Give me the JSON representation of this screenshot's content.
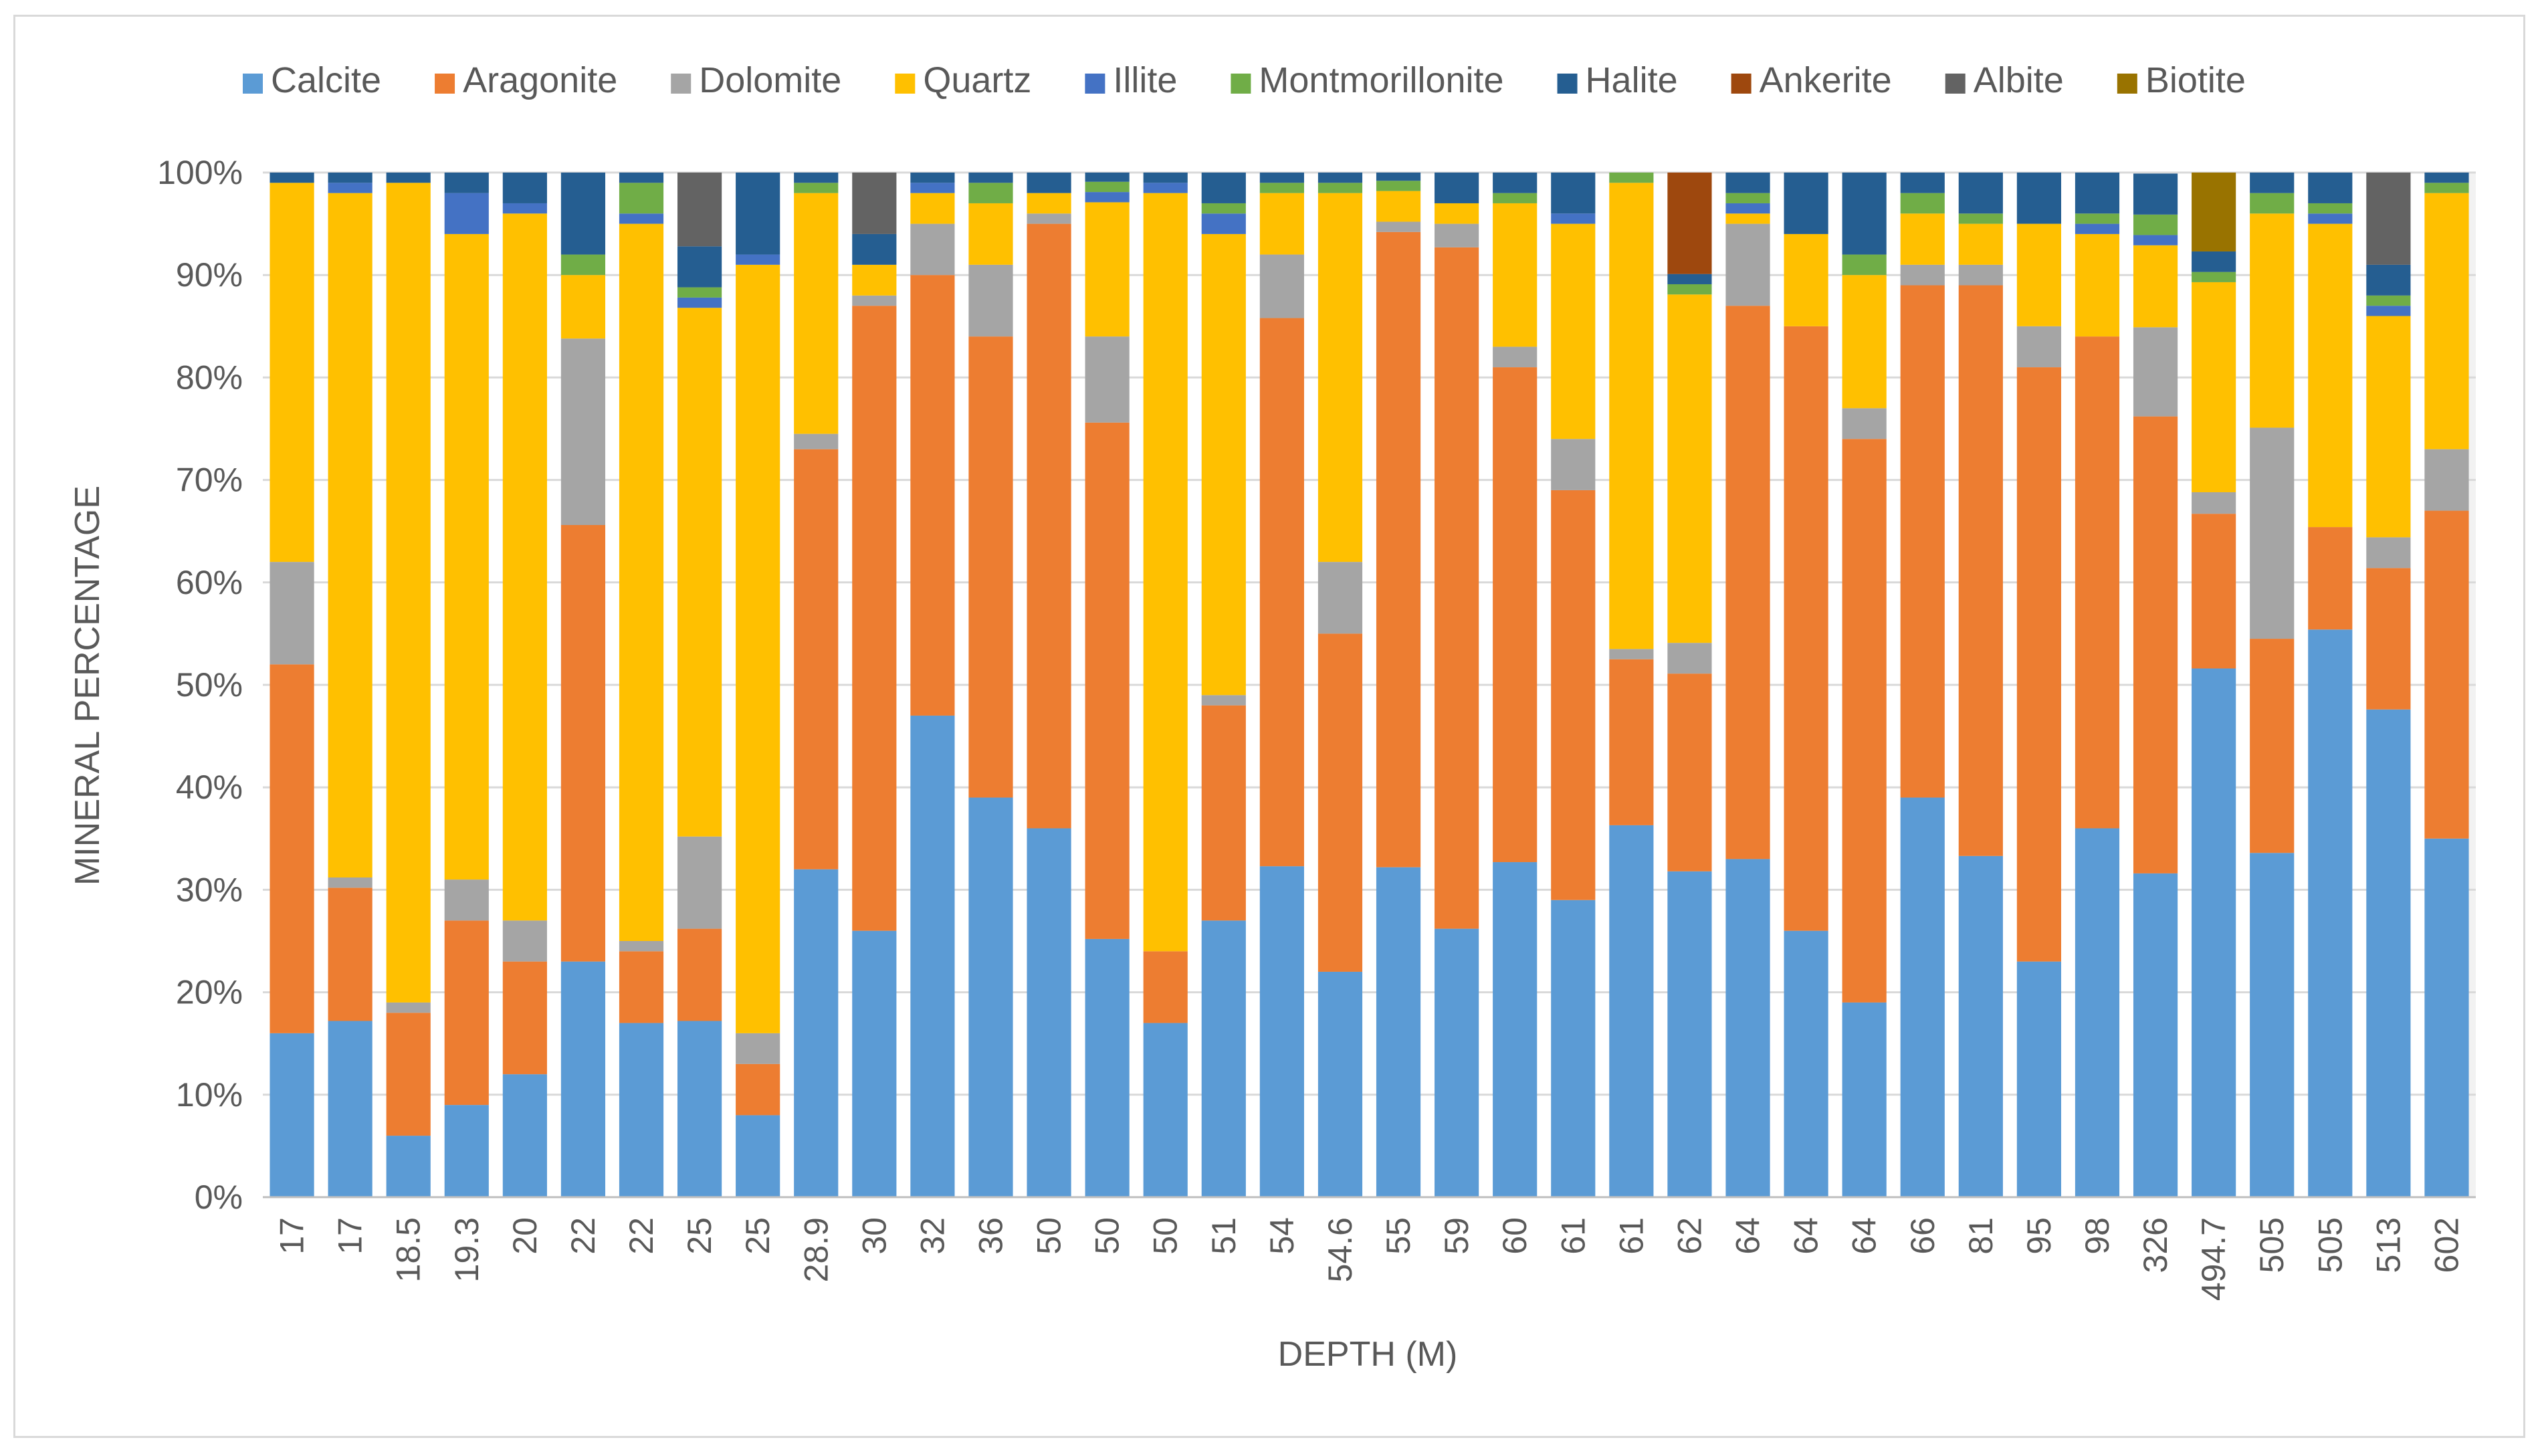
{
  "chart_data": {
    "type": "bar",
    "stacked": true,
    "xlabel": "DEPTH (M)",
    "ylabel": "MINERAL PERCENTAGE",
    "ylim": [
      0,
      100
    ],
    "y_ticks": [
      "0%",
      "10%",
      "20%",
      "30%",
      "40%",
      "50%",
      "60%",
      "70%",
      "80%",
      "90%",
      "100%"
    ],
    "grid": true,
    "legend_position": "top",
    "categories": [
      "17",
      "17",
      "18.5",
      "19.3",
      "20",
      "22",
      "22",
      "25",
      "25",
      "28.9",
      "30",
      "32",
      "36",
      "50",
      "50",
      "50",
      "51",
      "54",
      "54.6",
      "55",
      "59",
      "60",
      "61",
      "61",
      "62",
      "64",
      "64",
      "64",
      "66",
      "81",
      "95",
      "98",
      "326",
      "494.7",
      "505",
      "505",
      "513",
      "602"
    ],
    "series": [
      {
        "name": "Calcite",
        "color": "#5b9bd5",
        "values": [
          16,
          17.2,
          6,
          9,
          12,
          23,
          17,
          17.2,
          8,
          32,
          26,
          47,
          39,
          36,
          25.2,
          17,
          27,
          32.3,
          22,
          32.2,
          26.2,
          32.7,
          29,
          36.3,
          31.8,
          33,
          26,
          19,
          39,
          33.3,
          23,
          36,
          31.6,
          51.6,
          33.6,
          55.4,
          47.6,
          35
        ]
      },
      {
        "name": "Aragonite",
        "color": "#ed7d31",
        "values": [
          36,
          13,
          12,
          18,
          11,
          42.6,
          7,
          9,
          5,
          41,
          61,
          43,
          45,
          59,
          50.4,
          7,
          21,
          53.5,
          33,
          62,
          66.5,
          48.3,
          40,
          16.2,
          19.3,
          54,
          59,
          55,
          50,
          55.7,
          58,
          48,
          44.6,
          15.1,
          20.9,
          10,
          13.8,
          32
        ]
      },
      {
        "name": "Dolomite",
        "color": "#a5a5a5",
        "values": [
          10,
          1,
          1,
          4,
          4,
          18.2,
          1,
          9,
          3,
          1.5,
          1,
          5,
          7,
          1,
          8.4,
          0,
          1,
          6.2,
          7,
          1,
          2.3,
          2,
          5,
          1,
          3,
          8,
          0,
          3,
          2,
          2,
          4,
          0,
          8.7,
          2.1,
          20.6,
          0,
          3,
          6
        ]
      },
      {
        "name": "Quartz",
        "color": "#ffc000",
        "values": [
          37,
          66.8,
          80,
          63,
          69,
          6.2,
          70,
          51.6,
          75,
          23.5,
          3,
          3,
          6,
          2,
          13.1,
          74,
          45,
          6,
          36,
          3,
          2,
          14,
          21,
          45.5,
          34,
          1,
          9,
          13,
          5,
          4,
          10,
          10,
          8,
          20.5,
          20.9,
          29.6,
          21.6,
          25
        ]
      },
      {
        "name": "Illite",
        "color": "#4472c4",
        "values": [
          0,
          1,
          0,
          4,
          1,
          0,
          1,
          1,
          1,
          0,
          0,
          1,
          0,
          0,
          1,
          1,
          2,
          0,
          0,
          0,
          0,
          0,
          1,
          0,
          0,
          1,
          0,
          0,
          0,
          0,
          0,
          1,
          1,
          0,
          0,
          1,
          1,
          0
        ]
      },
      {
        "name": "Montmorillonite",
        "color": "#70ad47",
        "values": [
          0,
          0,
          0,
          0,
          0,
          2,
          3,
          1,
          0,
          1,
          0,
          0,
          2,
          0,
          1,
          0,
          1,
          1,
          1,
          1,
          0,
          1,
          0,
          1,
          1,
          1,
          0,
          2,
          2,
          1,
          0,
          1,
          2,
          1,
          2,
          1,
          1,
          1
        ]
      },
      {
        "name": "Halite",
        "color": "#255e91",
        "values": [
          1,
          1,
          1,
          2,
          3,
          8,
          1,
          4,
          8,
          1,
          3,
          1,
          1,
          2,
          1,
          1,
          3,
          1,
          1,
          1,
          3,
          2,
          4,
          0,
          1,
          2,
          6,
          8,
          2,
          4,
          5,
          4,
          4,
          2,
          2,
          3,
          3,
          1
        ]
      },
      {
        "name": "Ankerite",
        "color": "#9e480e",
        "values": [
          0,
          0,
          0,
          0,
          0,
          0,
          0,
          0,
          0,
          0,
          0,
          0,
          0,
          0,
          0,
          0,
          0,
          0,
          0,
          0,
          0,
          0,
          0,
          0,
          10,
          0,
          0,
          0,
          0,
          0,
          0,
          0,
          0,
          0,
          0,
          0,
          0,
          0
        ]
      },
      {
        "name": "Albite",
        "color": "#636363",
        "values": [
          0,
          0,
          0,
          0,
          0,
          0,
          0,
          7.2,
          0,
          0,
          6,
          0,
          0,
          0,
          0,
          0,
          0,
          0,
          0,
          0,
          0,
          0,
          0,
          0,
          0,
          0,
          0,
          0,
          0,
          0,
          0,
          0,
          0,
          0,
          0,
          0,
          9,
          0
        ]
      },
      {
        "name": "Biotite",
        "color": "#997300",
        "values": [
          0,
          0,
          0,
          0,
          0,
          0,
          0,
          0,
          0,
          0,
          0,
          0,
          0,
          0,
          0,
          0,
          0,
          0,
          0,
          0,
          0,
          0,
          0,
          0,
          0,
          0,
          0,
          0,
          0,
          0,
          0,
          0,
          0,
          7.7,
          0,
          0,
          0,
          0
        ]
      }
    ]
  }
}
